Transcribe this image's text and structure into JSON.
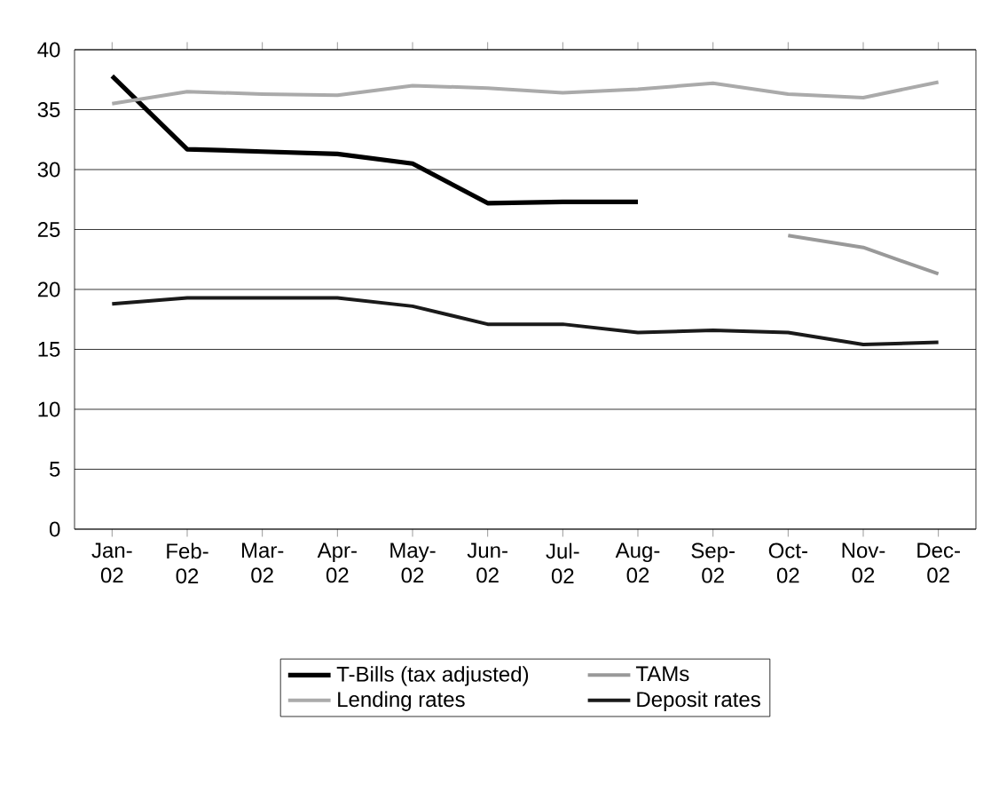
{
  "chart_data": {
    "type": "line",
    "categories": [
      "Jan-02",
      "Feb-02",
      "Mar-02",
      "Apr-02",
      "May-02",
      "Jun-02",
      "Jul-02",
      "Aug-02",
      "Sep-02",
      "Oct-02",
      "Nov-02",
      "Dec-02"
    ],
    "series": [
      {
        "name": "T-Bills (tax adjusted)",
        "color": "#000000",
        "values": [
          37.8,
          31.7,
          31.5,
          31.3,
          30.5,
          27.2,
          27.3,
          27.3,
          null,
          null,
          null,
          null
        ]
      },
      {
        "name": "TAMs",
        "color": "#999999",
        "values": [
          null,
          null,
          null,
          null,
          null,
          null,
          null,
          null,
          null,
          24.5,
          23.5,
          21.3
        ]
      },
      {
        "name": "Lending rates",
        "color": "#aaaaaa",
        "values": [
          35.5,
          36.5,
          36.3,
          36.2,
          37.0,
          36.8,
          36.4,
          36.7,
          37.2,
          36.3,
          36.0,
          37.3
        ]
      },
      {
        "name": "Deposit rates",
        "color": "#1a1a1a",
        "values": [
          18.8,
          19.3,
          19.3,
          19.3,
          18.6,
          17.1,
          17.1,
          16.4,
          16.6,
          16.4,
          15.4,
          15.6
        ]
      }
    ],
    "ylim": [
      0,
      40
    ],
    "yticks": [
      0,
      5,
      10,
      15,
      20,
      25,
      30,
      35,
      40
    ],
    "grid": "y",
    "legend": "bottom",
    "marker": "none",
    "line_style": "solid"
  }
}
